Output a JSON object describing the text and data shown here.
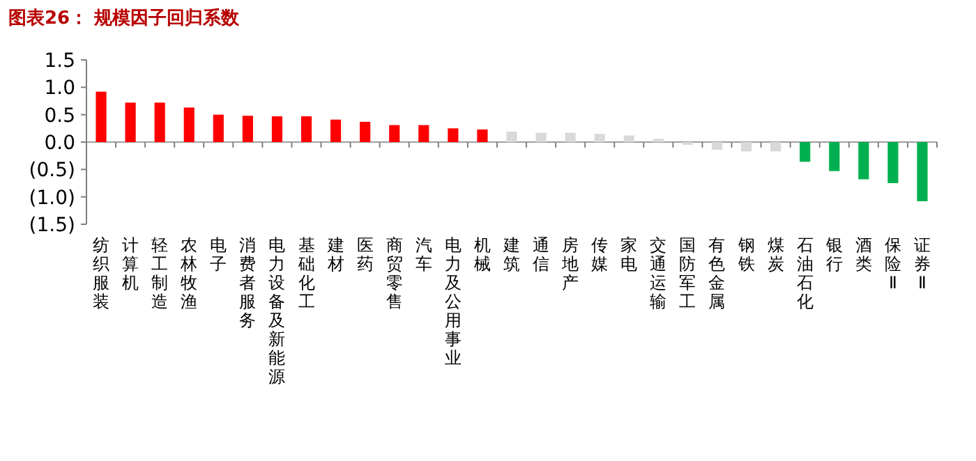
{
  "chart_data": {
    "type": "bar",
    "title": "图表26：  规模因子回归系数",
    "categories": [
      "纺织服装",
      "计算机",
      "轻工制造",
      "农林牧渔",
      "电子",
      "消费者服务",
      "电力设备及新能源",
      "基础化工",
      "建材",
      "医药",
      "商贸零售",
      "汽车",
      "电力及公用事业",
      "机械",
      "建筑",
      "通信",
      "房地产",
      "传媒",
      "家电",
      "交通运输",
      "国防军工",
      "有色金属",
      "钢铁",
      "煤炭",
      "石油石化",
      "银行",
      "酒类",
      "保险Ⅱ",
      "证券Ⅱ"
    ],
    "values": [
      0.92,
      0.72,
      0.72,
      0.63,
      0.5,
      0.48,
      0.47,
      0.47,
      0.41,
      0.37,
      0.31,
      0.31,
      0.25,
      0.23,
      0.19,
      0.17,
      0.17,
      0.15,
      0.12,
      0.06,
      -0.05,
      -0.14,
      -0.17,
      -0.17,
      -0.36,
      -0.53,
      -0.68,
      -0.75,
      -1.08
    ],
    "colors": [
      "#ff0000",
      "#ff0000",
      "#ff0000",
      "#ff0000",
      "#ff0000",
      "#ff0000",
      "#ff0000",
      "#ff0000",
      "#ff0000",
      "#ff0000",
      "#ff0000",
      "#ff0000",
      "#ff0000",
      "#ff0000",
      "#d9d9d9",
      "#d9d9d9",
      "#d9d9d9",
      "#d9d9d9",
      "#d9d9d9",
      "#d9d9d9",
      "#d9d9d9",
      "#d9d9d9",
      "#d9d9d9",
      "#d9d9d9",
      "#00b050",
      "#00b050",
      "#00b050",
      "#00b050",
      "#00b050"
    ],
    "ylim": [
      -1.5,
      1.5
    ],
    "yticks": [
      1.5,
      {
        "value": 1,
        "label": "1.0"
      },
      0.5,
      {
        "value": 0,
        "label": "0.0"
      },
      {
        "value": -0.5,
        "label": "(0.5)"
      },
      {
        "value": -1.0,
        "label": "(1.0)"
      },
      {
        "value": -1.5,
        "label": "(1.5)"
      }
    ]
  }
}
